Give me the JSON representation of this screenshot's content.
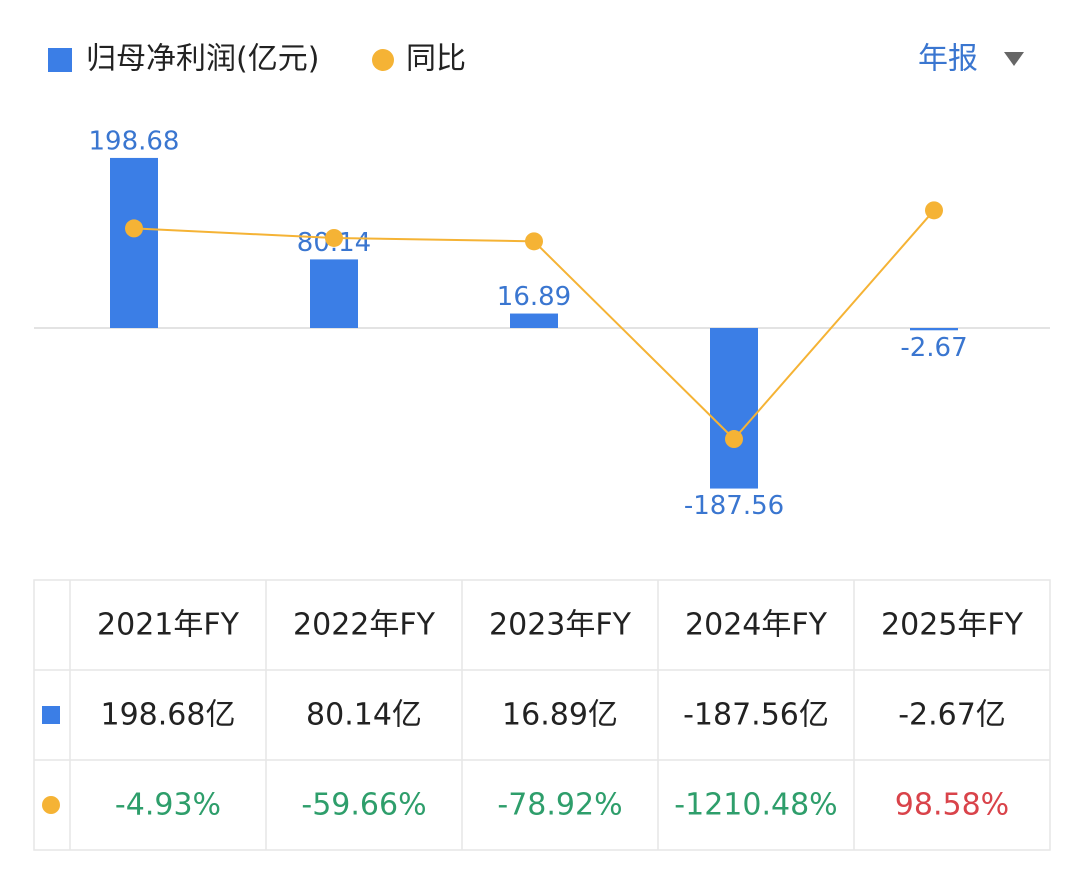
{
  "chart_data": {
    "type": "bar",
    "period_selector": "年报",
    "categories": [
      "2021年FY",
      "2022年FY",
      "2023年FY",
      "2024年FY",
      "2025年FY"
    ],
    "ylim": [
      -250,
      250
    ],
    "y2lim": [
      -1800,
      650
    ],
    "series": [
      {
        "name": "归母净利润(亿元)",
        "color": "#3b7ee6",
        "label_color": "#3a76d0",
        "values": [
          198.68,
          80.14,
          16.89,
          -187.56,
          -2.67
        ],
        "value_labels": [
          "198.68亿",
          "80.14亿",
          "16.89亿",
          "-187.56亿",
          "-2.67亿"
        ]
      },
      {
        "name": "同比",
        "type": "line",
        "axis": "y2",
        "color": "#f5b335",
        "values": [
          -4.93,
          -59.66,
          -78.92,
          -1210.48,
          98.58
        ],
        "value_labels": [
          "-4.93%",
          "-59.66%",
          "-78.92%",
          "-1210.48%",
          "98.58%"
        ]
      }
    ]
  }
}
